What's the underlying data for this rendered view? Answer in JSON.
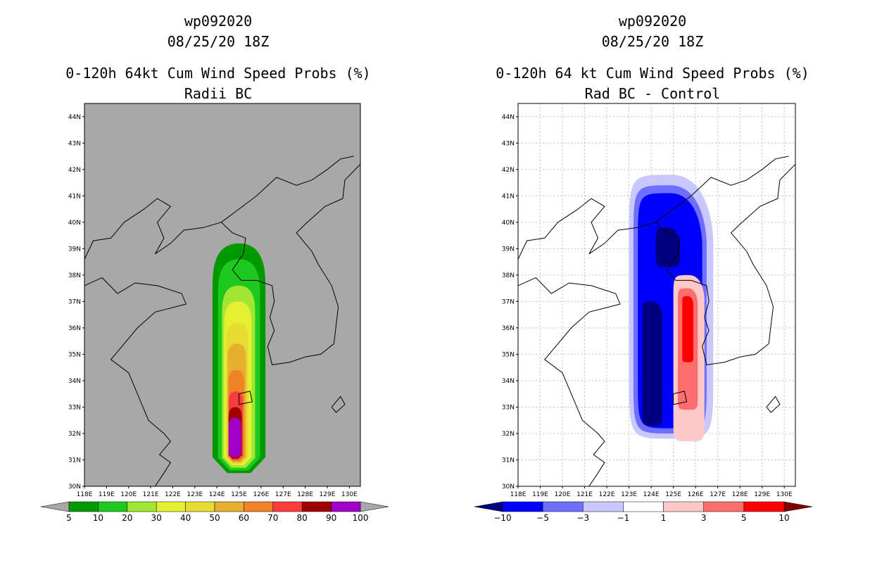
{
  "chart_data": [
    {
      "type": "contour-map",
      "id": "wp092020",
      "datetime": "08/25/20 18Z",
      "title": "0-120h 64kt Cum Wind Speed Probs (%)",
      "subtitle": "Radii BC",
      "background": "#a8a8a8",
      "x_ticks": [
        "118E",
        "119E",
        "120E",
        "121E",
        "122E",
        "123E",
        "124E",
        "125E",
        "126E",
        "127E",
        "128E",
        "129E",
        "130E"
      ],
      "y_ticks": [
        "30N",
        "31N",
        "32N",
        "33N",
        "34N",
        "35N",
        "36N",
        "37N",
        "38N",
        "39N",
        "40N",
        "41N",
        "42N",
        "43N",
        "44N"
      ],
      "lon_range": [
        118,
        130.5
      ],
      "lat_range": [
        30,
        44.5
      ],
      "grid": false,
      "colorbar": {
        "labels": [
          "5",
          "10",
          "20",
          "30",
          "40",
          "50",
          "60",
          "70",
          "80",
          "90",
          "100"
        ],
        "colors": [
          "#009900",
          "#1ec81e",
          "#a0e632",
          "#e6f032",
          "#e6dc32",
          "#e6af2d",
          "#f08228",
          "#fa3c3c",
          "#a00000",
          "#a000c8"
        ],
        "end_color": "#a8a8a8"
      },
      "contours": [
        {
          "level": 5,
          "color": "#009900",
          "center_lon": 125.0,
          "lat_range": [
            30.5,
            39.2
          ],
          "half_width_deg": 1.2
        },
        {
          "level": 10,
          "color": "#1ec81e",
          "center_lon": 125.0,
          "lat_range": [
            30.6,
            38.6
          ],
          "half_width_deg": 0.95
        },
        {
          "level": 20,
          "color": "#a0e632",
          "center_lon": 124.98,
          "lat_range": [
            30.7,
            37.6
          ],
          "half_width_deg": 0.75
        },
        {
          "level": 30,
          "color": "#e6f032",
          "center_lon": 124.95,
          "lat_range": [
            30.8,
            37.0
          ],
          "half_width_deg": 0.62
        },
        {
          "level": 40,
          "color": "#e6dc32",
          "center_lon": 124.92,
          "lat_range": [
            30.85,
            36.2
          ],
          "half_width_deg": 0.5
        },
        {
          "level": 50,
          "color": "#e6af2d",
          "center_lon": 124.9,
          "lat_range": [
            30.9,
            35.4
          ],
          "half_width_deg": 0.42
        },
        {
          "level": 60,
          "color": "#f08228",
          "center_lon": 124.88,
          "lat_range": [
            30.95,
            34.4
          ],
          "half_width_deg": 0.36
        },
        {
          "level": 70,
          "color": "#fa3c3c",
          "center_lon": 124.85,
          "lat_range": [
            31.0,
            33.6
          ],
          "half_width_deg": 0.32
        },
        {
          "level": 80,
          "color": "#a00000",
          "center_lon": 124.83,
          "lat_range": [
            31.05,
            33.0
          ],
          "half_width_deg": 0.3
        },
        {
          "level": 90,
          "color": "#a000c8",
          "center_lon": 124.82,
          "lat_range": [
            31.1,
            32.6
          ],
          "half_width_deg": 0.28
        }
      ]
    },
    {
      "type": "contour-map",
      "id": "wp092020",
      "datetime": "08/25/20 18Z",
      "title": "0-120h 64 kt Cum Wind Speed Probs (%)",
      "subtitle": "Rad BC - Control",
      "background": "#ffffff",
      "x_ticks": [
        "118E",
        "119E",
        "120E",
        "121E",
        "122E",
        "123E",
        "124E",
        "125E",
        "126E",
        "127E",
        "128E",
        "129E",
        "130E"
      ],
      "y_ticks": [
        "30N",
        "31N",
        "32N",
        "33N",
        "34N",
        "35N",
        "36N",
        "37N",
        "38N",
        "39N",
        "40N",
        "41N",
        "42N",
        "43N",
        "44N"
      ],
      "lon_range": [
        118,
        130.5
      ],
      "lat_range": [
        30,
        44.5
      ],
      "grid": true,
      "colorbar": {
        "labels": [
          "−10",
          "−5",
          "−3",
          "−1",
          "1",
          "3",
          "5",
          "10"
        ],
        "colors": [
          "#0000ff",
          "#6e6eff",
          "#c8c8ff",
          "#ffffff",
          "#ffc8c8",
          "#ff6e6e",
          "#ff0000"
        ],
        "low_color": "#000080",
        "high_color": "#800000"
      },
      "contours": [
        {
          "level": -1,
          "color": "#c8c8ff",
          "lon_range": [
            123.0,
            126.8
          ],
          "lat_range": [
            31.8,
            41.8
          ]
        },
        {
          "level": -3,
          "color": "#6e6eff",
          "lon_range": [
            123.2,
            126.5
          ],
          "lat_range": [
            32.0,
            41.4
          ]
        },
        {
          "level": -5,
          "color": "#0000ff",
          "lon_range": [
            123.4,
            126.3
          ],
          "lat_range": [
            32.2,
            41.1
          ]
        },
        {
          "level": -10,
          "color": "#000080",
          "lon_range": [
            123.6,
            124.5
          ],
          "lat_range": [
            32.3,
            37.0
          ]
        },
        {
          "level": -10,
          "color": "#000080",
          "lon_range": [
            124.2,
            125.3
          ],
          "lat_range": [
            38.3,
            39.8
          ]
        },
        {
          "level": 1,
          "color": "#ffc8c8",
          "lon_range": [
            125.0,
            126.4
          ],
          "lat_range": [
            31.7,
            38.0
          ]
        },
        {
          "level": 3,
          "color": "#ff6e6e",
          "lon_range": [
            125.2,
            126.1
          ],
          "lat_range": [
            32.9,
            37.5
          ]
        },
        {
          "level": 5,
          "color": "#ff0000",
          "lon_range": [
            125.4,
            125.9
          ],
          "lat_range": [
            34.7,
            37.2
          ]
        }
      ]
    }
  ]
}
